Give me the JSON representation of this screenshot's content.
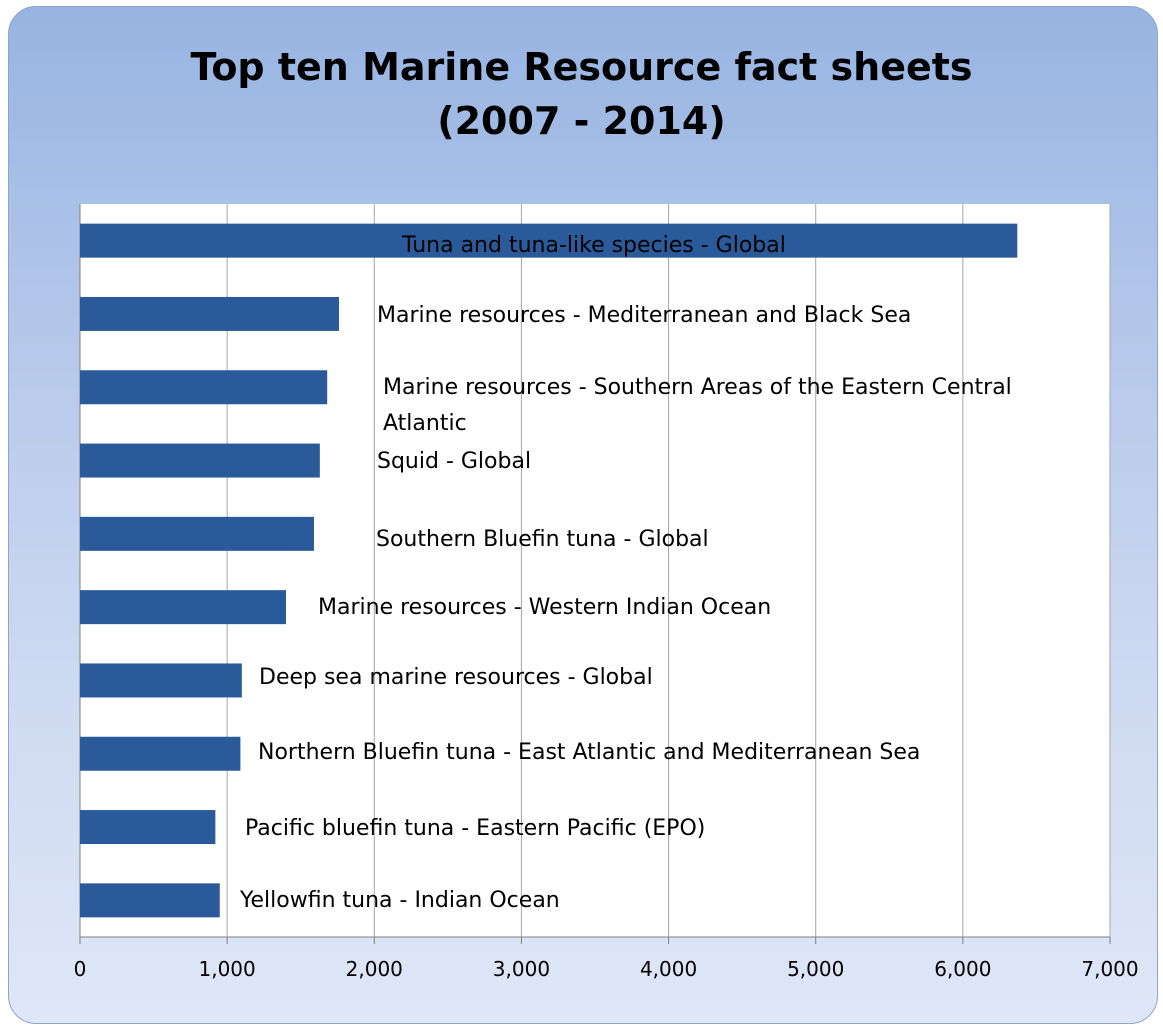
{
  "chart_data": {
    "type": "bar",
    "orientation": "horizontal",
    "title_lines": [
      "Top ten Marine Resource fact sheets",
      "(2007 - 2014)"
    ],
    "categories": [
      "Tuna and tuna-like species - Global",
      "Marine resources - Mediterranean and Black Sea",
      "Marine resources - Southern Areas of the Eastern Central Atlantic",
      "Squid - Global",
      "Southern Bluefin tuna - Global",
      "Marine resources - Western Indian Ocean",
      "Deep sea marine resources - Global",
      "Northern Bluefin tuna - East Atlantic and Mediterranean Sea",
      "Pacific bluefin tuna - Eastern Pacific (EPO)",
      "Yellowfin tuna - Indian Ocean"
    ],
    "values": [
      6370,
      1760,
      1680,
      1630,
      1590,
      1400,
      1100,
      1090,
      920,
      950
    ],
    "xlim": [
      0,
      7000
    ],
    "x_ticks": [
      0,
      1000,
      2000,
      3000,
      4000,
      5000,
      6000,
      7000
    ],
    "x_tick_labels": [
      "0",
      "1,000",
      "2,000",
      "3,000",
      "4,000",
      "5,000",
      "6,000",
      "7,000"
    ],
    "grid": "vertical",
    "bar_color": "#2a5a9a"
  }
}
